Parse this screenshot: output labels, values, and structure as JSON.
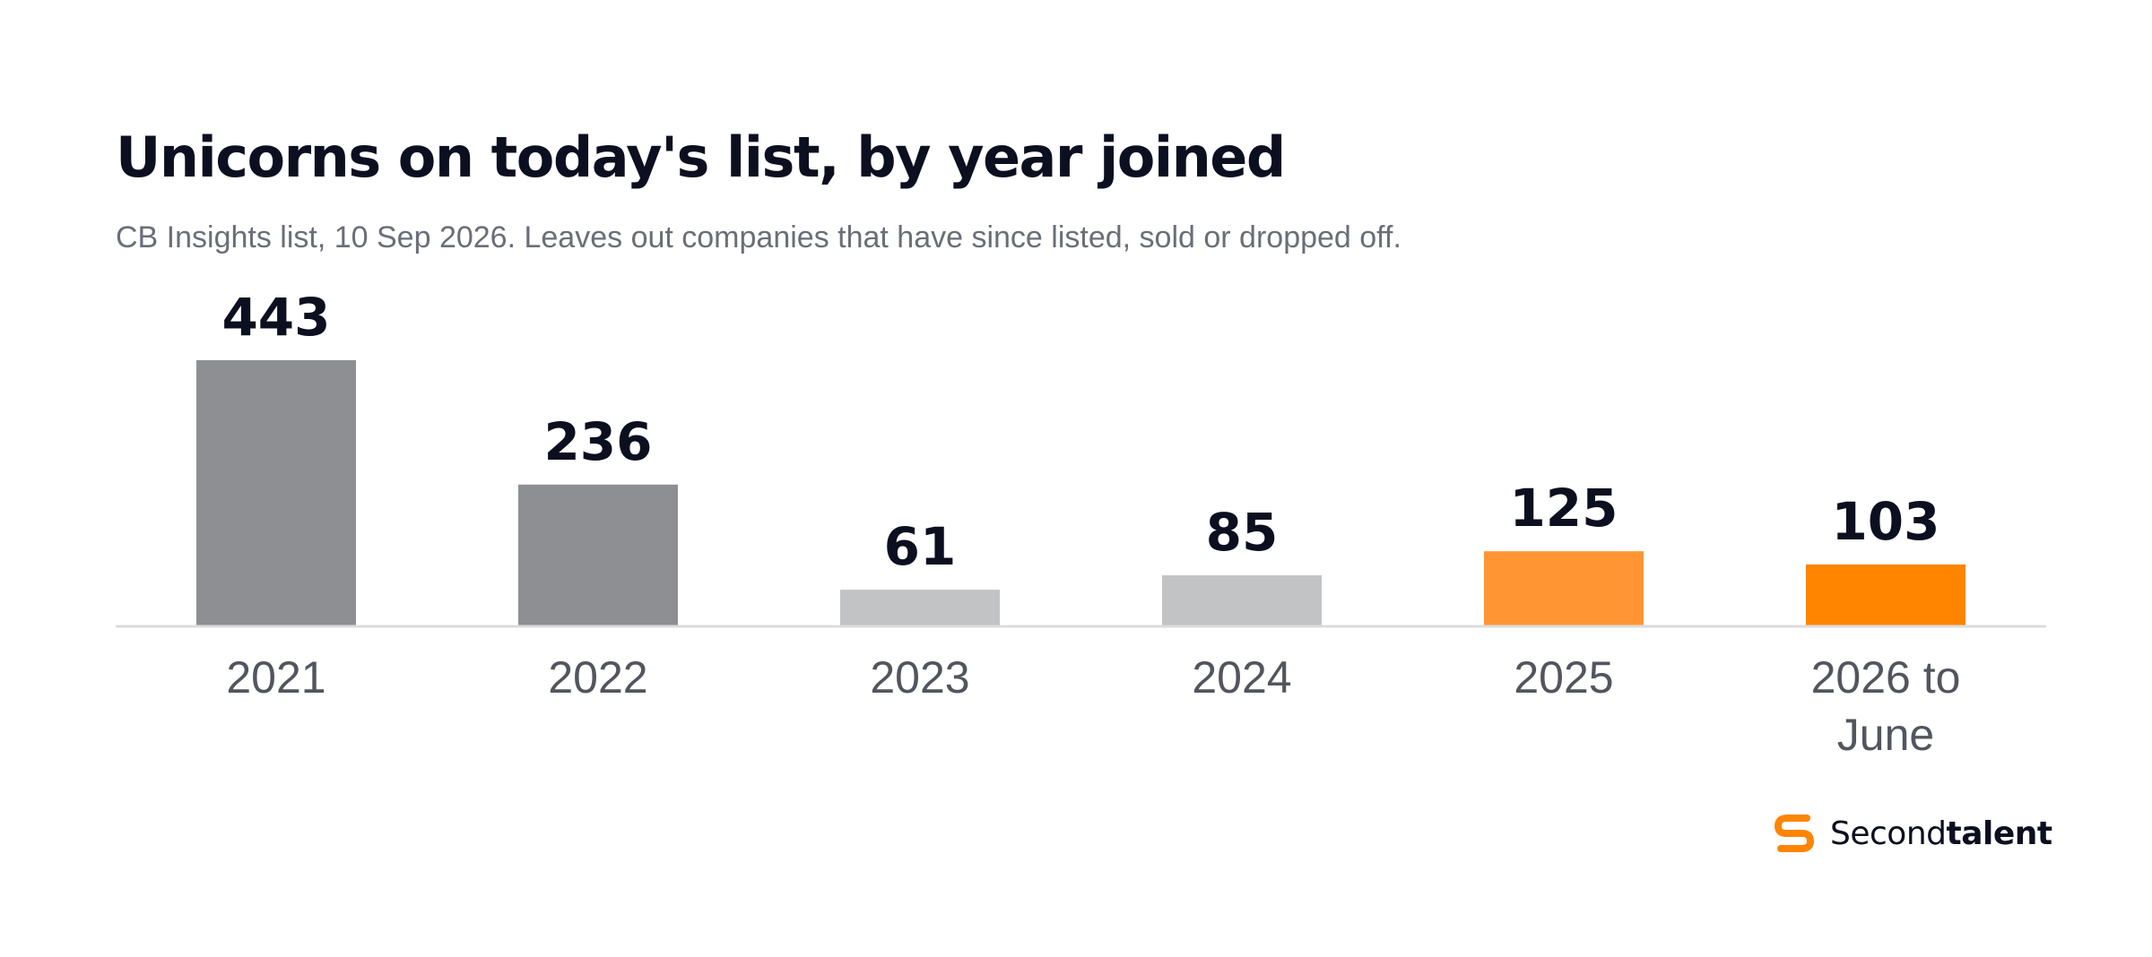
{
  "chart_data": {
    "type": "bar",
    "title": "Unicorns on today's list, by year joined",
    "subtitle": "CB Insights list, 10 Sep 2026. Leaves out companies that have since listed, sold or dropped off.",
    "categories": [
      "2021",
      "2022",
      "2023",
      "2024",
      "2025",
      "2026 to June"
    ],
    "category_lines": [
      [
        "2021"
      ],
      [
        "2022"
      ],
      [
        "2023"
      ],
      [
        "2024"
      ],
      [
        "2025"
      ],
      [
        "2026 to",
        "June"
      ]
    ],
    "values": [
      443,
      236,
      61,
      85,
      125,
      103
    ],
    "data_labels": [
      "443",
      "236",
      "61",
      "85",
      "125",
      "103"
    ],
    "bar_colors": [
      "#8e8f93",
      "#8e8f93",
      "#c2c3c5",
      "#c2c3c5",
      "#ff9633",
      "#ff8500"
    ],
    "ylim": [
      0,
      443
    ],
    "xlabel": "",
    "ylabel": "",
    "grid": false,
    "legend": "none"
  },
  "brand": {
    "name_regular": "Second",
    "name_bold": "talent",
    "logo_icon": "secondtalent-s-logo-icon",
    "accent_color": "#ff8500"
  }
}
